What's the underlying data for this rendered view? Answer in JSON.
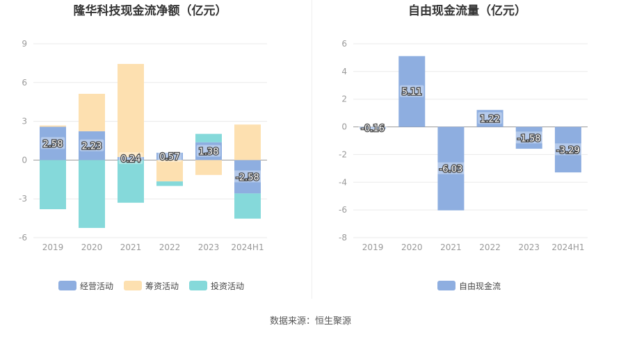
{
  "source_text": "数据来源：恒生聚源",
  "chart_data": [
    {
      "type": "bar",
      "stacked": true,
      "title": "隆华科技现金流净额（亿元）",
      "categories": [
        "2019",
        "2020",
        "2021",
        "2022",
        "2023",
        "2024H1"
      ],
      "ylim": [
        -6,
        9
      ],
      "yticks": [
        -6,
        -3,
        0,
        3,
        6,
        9
      ],
      "grid": true,
      "legend_position": "bottom",
      "series": [
        {
          "name": "经营活动",
          "color": "#8eaee0",
          "values": [
            2.58,
            2.23,
            0.24,
            0.57,
            1.38,
            -2.58
          ],
          "labels": [
            "2.58",
            "2.23",
            "0.24",
            "0.57",
            "1.38",
            "-2.58"
          ]
        },
        {
          "name": "筹资活动",
          "color": "#fde0b0",
          "values": [
            0.1,
            2.9,
            7.2,
            -1.65,
            -1.15,
            2.75
          ]
        },
        {
          "name": "投资活动",
          "color": "#85d9da",
          "values": [
            -3.8,
            -5.25,
            -3.3,
            -0.35,
            0.65,
            -1.95
          ]
        }
      ]
    },
    {
      "type": "bar",
      "title": "自由现金流量（亿元）",
      "categories": [
        "2019",
        "2020",
        "2021",
        "2022",
        "2023",
        "2024H1"
      ],
      "ylim": [
        -8,
        6
      ],
      "yticks": [
        -8,
        -6,
        -4,
        -2,
        0,
        2,
        4,
        6
      ],
      "grid": true,
      "legend_position": "bottom",
      "series": [
        {
          "name": "自由现金流",
          "color": "#8eaee0",
          "values": [
            -0.16,
            5.11,
            -6.03,
            1.22,
            -1.58,
            -3.29
          ],
          "labels": [
            "-0.16",
            "5.11",
            "-6.03",
            "1.22",
            "-1.58",
            "-3.29"
          ]
        }
      ]
    }
  ]
}
